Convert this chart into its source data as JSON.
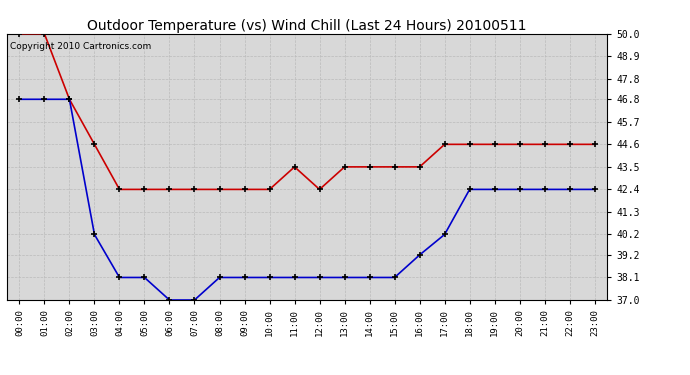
{
  "title": "Outdoor Temperature (vs) Wind Chill (Last 24 Hours) 20100511",
  "copyright": "Copyright 2010 Cartronics.com",
  "x_labels": [
    "00:00",
    "01:00",
    "02:00",
    "03:00",
    "04:00",
    "05:00",
    "06:00",
    "07:00",
    "08:00",
    "09:00",
    "10:00",
    "11:00",
    "12:00",
    "13:00",
    "14:00",
    "15:00",
    "16:00",
    "17:00",
    "18:00",
    "19:00",
    "20:00",
    "21:00",
    "22:00",
    "23:00"
  ],
  "temp_data": [
    46.8,
    46.8,
    46.8,
    40.2,
    38.1,
    38.1,
    37.0,
    37.0,
    38.1,
    38.1,
    38.1,
    38.1,
    38.1,
    38.1,
    38.1,
    38.1,
    39.2,
    40.2,
    42.4,
    42.4,
    42.4,
    42.4,
    42.4,
    42.4
  ],
  "wind_data": [
    50.0,
    50.0,
    46.8,
    44.6,
    42.4,
    42.4,
    42.4,
    42.4,
    42.4,
    42.4,
    42.4,
    43.5,
    42.4,
    43.5,
    43.5,
    43.5,
    43.5,
    44.6,
    44.6,
    44.6,
    44.6,
    44.6,
    44.6,
    44.6
  ],
  "ylim": [
    37.0,
    50.0
  ],
  "yticks": [
    37.0,
    38.1,
    39.2,
    40.2,
    41.3,
    42.4,
    43.5,
    44.6,
    45.7,
    46.8,
    47.8,
    48.9,
    50.0
  ],
  "temp_color": "#0000cc",
  "wind_color": "#cc0000",
  "bg_color": "#ffffff",
  "plot_bg_color": "#d8d8d8",
  "grid_color": "#bbbbbb",
  "title_fontsize": 10,
  "copyright_fontsize": 6.5
}
